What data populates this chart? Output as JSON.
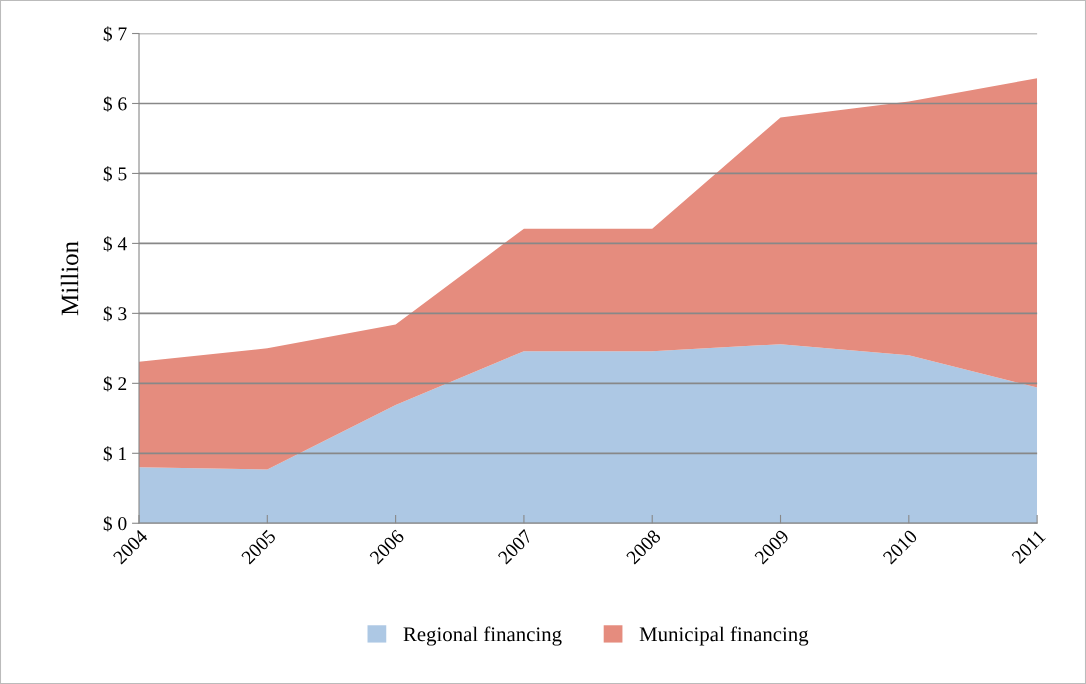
{
  "chart_data": {
    "type": "area",
    "stacked": true,
    "ylabel": "Million",
    "categories": [
      "2004",
      "2005",
      "2006",
      "2007",
      "2008",
      "2009",
      "2010",
      "2011"
    ],
    "series": [
      {
        "name": "Regional financing",
        "color": "#adc8e4",
        "values": [
          0.8,
          0.77,
          1.69,
          2.46,
          2.46,
          2.56,
          2.4,
          1.94
        ]
      },
      {
        "name": "Municipal financing",
        "color": "#e58c7e",
        "values": [
          1.51,
          1.73,
          1.15,
          1.75,
          1.75,
          3.24,
          3.63,
          4.42
        ]
      }
    ],
    "ylim": [
      0,
      7
    ],
    "yticks": [
      {
        "value": 0,
        "label": "$ 0"
      },
      {
        "value": 1,
        "label": "$ 1"
      },
      {
        "value": 2,
        "label": "$ 2"
      },
      {
        "value": 3,
        "label": "$ 3"
      },
      {
        "value": 4,
        "label": "$ 4"
      },
      {
        "value": 5,
        "label": "$ 5"
      },
      {
        "value": 6,
        "label": "$ 6"
      },
      {
        "value": 7,
        "label": "$ 7"
      }
    ],
    "grid": "y",
    "legend": "bottom"
  }
}
